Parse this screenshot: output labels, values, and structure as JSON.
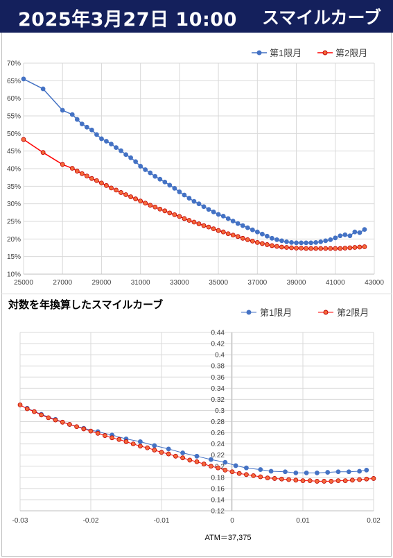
{
  "header": {
    "date": "2025年3月27日 10:00",
    "title": "スマイルカーブ"
  },
  "chart_data": [
    {
      "type": "line",
      "title": "",
      "xlabel": "",
      "ylabel": "",
      "xlim": [
        25000,
        43000
      ],
      "ylim": [
        0.1,
        0.7
      ],
      "x_ticks": [
        "25000",
        "27000",
        "29000",
        "31000",
        "33000",
        "35000",
        "37000",
        "39000",
        "41000",
        "43000"
      ],
      "y_ticks": [
        "10%",
        "15%",
        "20%",
        "25%",
        "30%",
        "35%",
        "40%",
        "45%",
        "50%",
        "55%",
        "60%",
        "65%",
        "70%"
      ],
      "grid": true,
      "legend_position": "top-right",
      "series": [
        {
          "name": "第1限月",
          "color": "#4472c4",
          "points": [
            [
              25000,
              0.655
            ],
            [
              26000,
              0.627
            ],
            [
              27000,
              0.566
            ],
            [
              27500,
              0.554
            ],
            [
              27750,
              0.54
            ],
            [
              28000,
              0.527
            ],
            [
              28250,
              0.518
            ],
            [
              28500,
              0.51
            ],
            [
              28750,
              0.497
            ],
            [
              29000,
              0.485
            ],
            [
              29250,
              0.478
            ],
            [
              29500,
              0.47
            ],
            [
              29750,
              0.46
            ],
            [
              30000,
              0.451
            ],
            [
              30250,
              0.44
            ],
            [
              30500,
              0.431
            ],
            [
              30750,
              0.42
            ],
            [
              31000,
              0.407
            ],
            [
              31250,
              0.397
            ],
            [
              31500,
              0.388
            ],
            [
              31750,
              0.378
            ],
            [
              32000,
              0.37
            ],
            [
              32250,
              0.362
            ],
            [
              32500,
              0.353
            ],
            [
              32750,
              0.344
            ],
            [
              33000,
              0.334
            ],
            [
              33250,
              0.325
            ],
            [
              33500,
              0.316
            ],
            [
              33750,
              0.307
            ],
            [
              34000,
              0.3
            ],
            [
              34250,
              0.292
            ],
            [
              34500,
              0.284
            ],
            [
              34750,
              0.277
            ],
            [
              35000,
              0.27
            ],
            [
              35250,
              0.265
            ],
            [
              35500,
              0.258
            ],
            [
              35750,
              0.251
            ],
            [
              36000,
              0.244
            ],
            [
              36250,
              0.238
            ],
            [
              36500,
              0.232
            ],
            [
              36750,
              0.226
            ],
            [
              37000,
              0.22
            ],
            [
              37250,
              0.214
            ],
            [
              37500,
              0.208
            ],
            [
              37750,
              0.202
            ],
            [
              38000,
              0.198
            ],
            [
              38250,
              0.195
            ],
            [
              38500,
              0.192
            ],
            [
              38750,
              0.19
            ],
            [
              39000,
              0.189
            ],
            [
              39250,
              0.189
            ],
            [
              39500,
              0.189
            ],
            [
              39750,
              0.189
            ],
            [
              40000,
              0.19
            ],
            [
              40250,
              0.192
            ],
            [
              40500,
              0.195
            ],
            [
              40750,
              0.198
            ],
            [
              41000,
              0.203
            ],
            [
              41250,
              0.209
            ],
            [
              41500,
              0.212
            ],
            [
              41750,
              0.209
            ],
            [
              42000,
              0.22
            ],
            [
              42250,
              0.218
            ],
            [
              42500,
              0.227
            ]
          ]
        },
        {
          "name": "第2限月",
          "color": "#ff0000",
          "points": [
            [
              25000,
              0.483
            ],
            [
              26000,
              0.446
            ],
            [
              27000,
              0.412
            ],
            [
              27500,
              0.401
            ],
            [
              27750,
              0.393
            ],
            [
              28000,
              0.386
            ],
            [
              28250,
              0.379
            ],
            [
              28500,
              0.372
            ],
            [
              28750,
              0.366
            ],
            [
              29000,
              0.359
            ],
            [
              29250,
              0.352
            ],
            [
              29500,
              0.345
            ],
            [
              29750,
              0.339
            ],
            [
              30000,
              0.332
            ],
            [
              30250,
              0.326
            ],
            [
              30500,
              0.32
            ],
            [
              30750,
              0.314
            ],
            [
              31000,
              0.308
            ],
            [
              31250,
              0.302
            ],
            [
              31500,
              0.296
            ],
            [
              31750,
              0.291
            ],
            [
              32000,
              0.285
            ],
            [
              32250,
              0.28
            ],
            [
              32500,
              0.274
            ],
            [
              32750,
              0.269
            ],
            [
              33000,
              0.264
            ],
            [
              33250,
              0.258
            ],
            [
              33500,
              0.253
            ],
            [
              33750,
              0.248
            ],
            [
              34000,
              0.243
            ],
            [
              34250,
              0.238
            ],
            [
              34500,
              0.234
            ],
            [
              34750,
              0.229
            ],
            [
              35000,
              0.224
            ],
            [
              35250,
              0.22
            ],
            [
              35500,
              0.215
            ],
            [
              35750,
              0.211
            ],
            [
              36000,
              0.207
            ],
            [
              36250,
              0.202
            ],
            [
              36500,
              0.198
            ],
            [
              36750,
              0.194
            ],
            [
              37000,
              0.19
            ],
            [
              37250,
              0.187
            ],
            [
              37500,
              0.184
            ],
            [
              37750,
              0.181
            ],
            [
              38000,
              0.179
            ],
            [
              38250,
              0.177
            ],
            [
              38500,
              0.176
            ],
            [
              38750,
              0.175
            ],
            [
              39000,
              0.174
            ],
            [
              39250,
              0.174
            ],
            [
              39500,
              0.173
            ],
            [
              39750,
              0.173
            ],
            [
              40000,
              0.173
            ],
            [
              40250,
              0.173
            ],
            [
              40500,
              0.173
            ],
            [
              40750,
              0.173
            ],
            [
              41000,
              0.173
            ],
            [
              41250,
              0.173
            ],
            [
              41500,
              0.174
            ],
            [
              41750,
              0.175
            ],
            [
              42000,
              0.176
            ],
            [
              42250,
              0.177
            ],
            [
              42500,
              0.178
            ]
          ]
        }
      ]
    },
    {
      "type": "scatter",
      "title": "対数を年換算したスマイルカーブ",
      "xlabel": "ATM＝37,375",
      "ylabel": "",
      "xlim": [
        -0.03,
        0.02
      ],
      "ylim": [
        0.12,
        0.44
      ],
      "x_ticks": [
        "-0.03",
        "-0.02",
        "-0.01",
        "0",
        "0.01",
        "0.02"
      ],
      "y_ticks": [
        "0.12",
        "0.14",
        "0.16",
        "0.18",
        "0.2",
        "0.22",
        "0.24",
        "0.26",
        "0.28",
        "0.3",
        "0.32",
        "0.34",
        "0.36",
        "0.38",
        "0.4",
        "0.42",
        "0.44"
      ],
      "grid": true,
      "legend_position": "top-right",
      "series": [
        {
          "name": "第1限月",
          "color": "#4472c4",
          "points": [
            [
              -0.029,
              0.304
            ],
            [
              -0.027,
              0.293
            ],
            [
              -0.025,
              0.284
            ],
            [
              -0.023,
              0.275
            ],
            [
              -0.021,
              0.268
            ],
            [
              -0.019,
              0.262
            ],
            [
              -0.017,
              0.256
            ],
            [
              -0.015,
              0.249
            ],
            [
              -0.013,
              0.244
            ],
            [
              -0.011,
              0.237
            ],
            [
              -0.009,
              0.231
            ],
            [
              -0.007,
              0.224
            ],
            [
              -0.005,
              0.218
            ],
            [
              -0.003,
              0.212
            ],
            [
              -0.001,
              0.207
            ],
            [
              0.0005,
              0.201
            ],
            [
              0.002,
              0.197
            ],
            [
              0.004,
              0.194
            ],
            [
              0.0055,
              0.191
            ],
            [
              0.0075,
              0.19
            ],
            [
              0.009,
              0.188
            ],
            [
              0.0105,
              0.188
            ],
            [
              0.012,
              0.188
            ],
            [
              0.0135,
              0.189
            ],
            [
              0.015,
              0.19
            ],
            [
              0.0165,
              0.19
            ],
            [
              0.018,
              0.191
            ],
            [
              0.019,
              0.193
            ]
          ]
        },
        {
          "name": "第2限月",
          "color": "#ff0000",
          "points": [
            [
              -0.03,
              0.31
            ],
            [
              -0.029,
              0.303
            ],
            [
              -0.028,
              0.298
            ],
            [
              -0.027,
              0.292
            ],
            [
              -0.026,
              0.287
            ],
            [
              -0.025,
              0.283
            ],
            [
              -0.024,
              0.279
            ],
            [
              -0.023,
              0.275
            ],
            [
              -0.022,
              0.271
            ],
            [
              -0.021,
              0.267
            ],
            [
              -0.02,
              0.263
            ],
            [
              -0.019,
              0.259
            ],
            [
              -0.018,
              0.255
            ],
            [
              -0.017,
              0.251
            ],
            [
              -0.016,
              0.248
            ],
            [
              -0.015,
              0.244
            ],
            [
              -0.014,
              0.24
            ],
            [
              -0.013,
              0.236
            ],
            [
              -0.012,
              0.233
            ],
            [
              -0.011,
              0.229
            ],
            [
              -0.01,
              0.225
            ],
            [
              -0.009,
              0.222
            ],
            [
              -0.008,
              0.218
            ],
            [
              -0.007,
              0.215
            ],
            [
              -0.006,
              0.211
            ],
            [
              -0.005,
              0.208
            ],
            [
              -0.004,
              0.204
            ],
            [
              -0.003,
              0.2
            ],
            [
              -0.002,
              0.197
            ],
            [
              -0.001,
              0.193
            ],
            [
              0.0,
              0.19
            ],
            [
              0.001,
              0.187
            ],
            [
              0.002,
              0.185
            ],
            [
              0.003,
              0.183
            ],
            [
              0.004,
              0.181
            ],
            [
              0.005,
              0.179
            ],
            [
              0.006,
              0.178
            ],
            [
              0.007,
              0.177
            ],
            [
              0.008,
              0.176
            ],
            [
              0.009,
              0.175
            ],
            [
              0.01,
              0.174
            ],
            [
              0.011,
              0.174
            ],
            [
              0.012,
              0.173
            ],
            [
              0.013,
              0.173
            ],
            [
              0.014,
              0.173
            ],
            [
              0.015,
              0.174
            ],
            [
              0.016,
              0.174
            ],
            [
              0.017,
              0.175
            ],
            [
              0.018,
              0.176
            ],
            [
              0.019,
              0.177
            ],
            [
              0.02,
              0.178
            ]
          ]
        }
      ]
    }
  ]
}
